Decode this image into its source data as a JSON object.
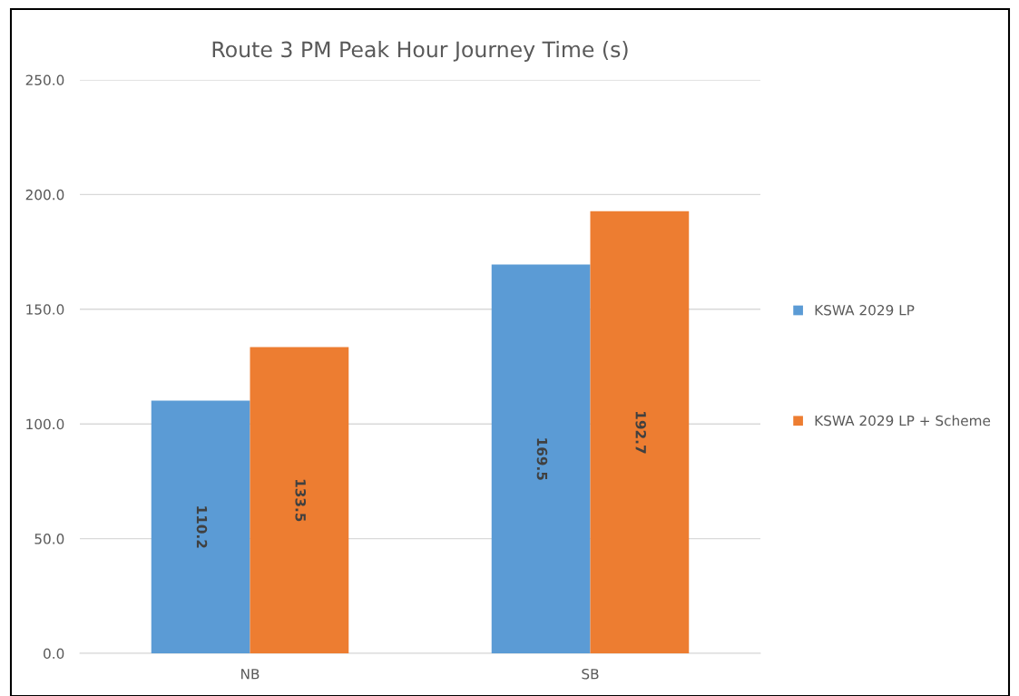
{
  "chart_data": {
    "type": "bar",
    "title": "Route 3 PM Peak Hour Journey Time (s)",
    "categories": [
      "NB",
      "SB"
    ],
    "series": [
      {
        "name": "KSWA 2029 LP",
        "color": "#5b9bd5",
        "values": [
          110.2,
          169.5
        ]
      },
      {
        "name": "KSWA 2029 LP + Scheme",
        "color": "#ed7d31",
        "values": [
          133.5,
          192.7
        ]
      }
    ],
    "ylim": [
      0,
      250
    ],
    "yticks": [
      {
        "value": 0,
        "label": "0.0"
      },
      {
        "value": 50,
        "label": "50.0"
      },
      {
        "value": 100,
        "label": "100.0"
      },
      {
        "value": 150,
        "label": "150.0"
      },
      {
        "value": 200,
        "label": "200.0"
      },
      {
        "value": 250,
        "label": "250.0"
      }
    ],
    "grid": "y",
    "legend": "right",
    "data_labels": true
  }
}
